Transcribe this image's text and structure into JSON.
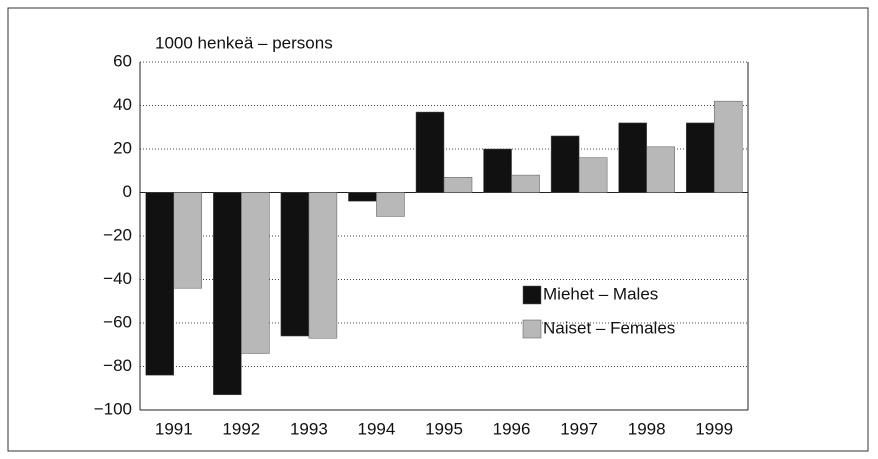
{
  "chart_data": {
    "type": "bar",
    "axis_label": "1000 henkeä – persons",
    "categories": [
      "1991",
      "1992",
      "1993",
      "1994",
      "1995",
      "1996",
      "1997",
      "1998",
      "1999"
    ],
    "series": [
      {
        "name": "Miehet – Males",
        "color": "#111111",
        "values": [
          -84,
          -93,
          -66,
          -4,
          37,
          20,
          26,
          32,
          32
        ]
      },
      {
        "name": "Naiset – Females",
        "color": "#b8b8b8",
        "values": [
          -44,
          -74,
          -67,
          -11,
          7,
          8,
          16,
          21,
          42
        ]
      }
    ],
    "ylim": [
      -100,
      60
    ],
    "yticks": [
      {
        "value": -100,
        "label": "−100"
      },
      {
        "value": -80,
        "label": "−80"
      },
      {
        "value": -60,
        "label": "−60"
      },
      {
        "value": -40,
        "label": "−40"
      },
      {
        "value": -20,
        "label": "−20"
      },
      0,
      20,
      40,
      60
    ],
    "grid": true,
    "legend": "lower right"
  }
}
